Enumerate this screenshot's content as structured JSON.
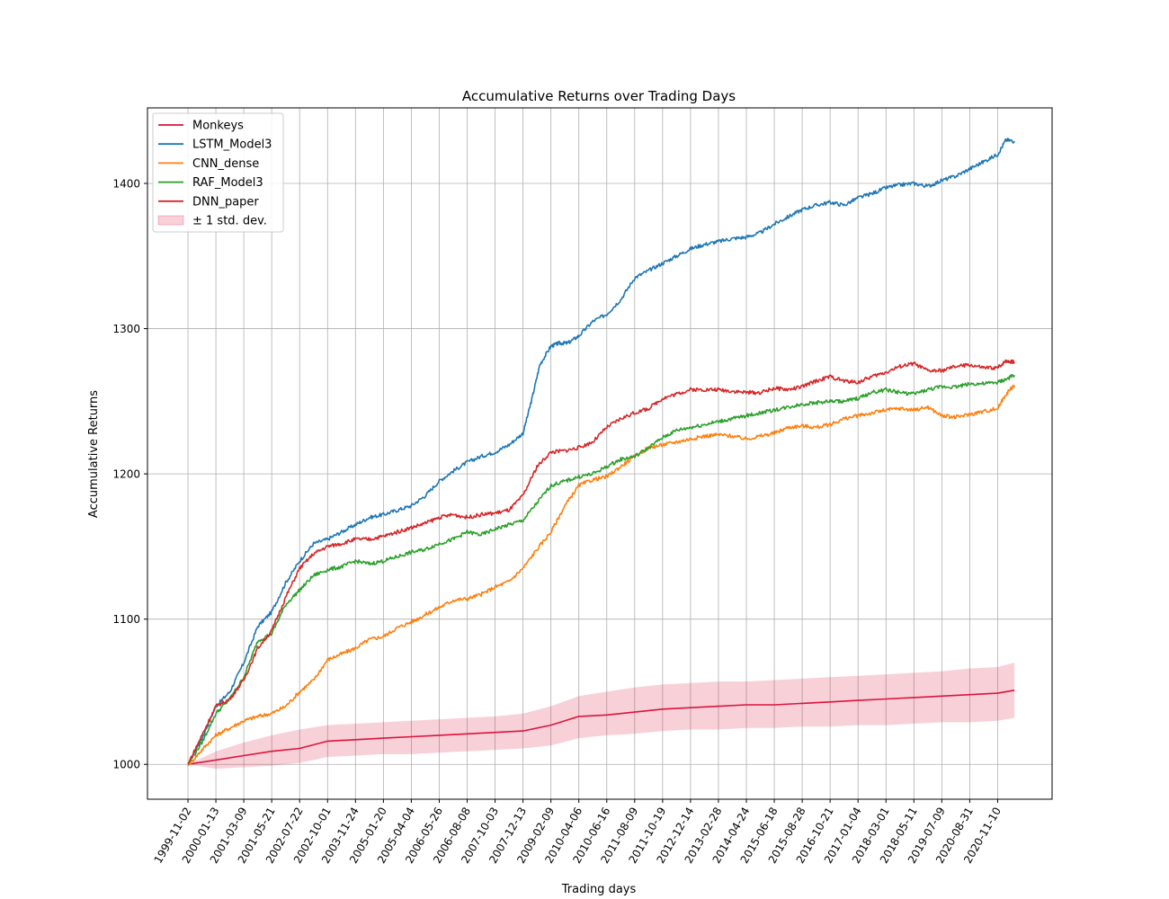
{
  "chart_data": {
    "type": "line",
    "title": "Accumulative Returns over Trading Days",
    "xlabel": "Trading days",
    "ylabel": "Accumulative Returns",
    "xticks": [
      "1999-11-02",
      "2000-01-13",
      "2001-03-09",
      "2001-05-21",
      "2002-07-22",
      "2002-10-01",
      "2003-11-24",
      "2005-01-20",
      "2005-04-04",
      "2006-05-26",
      "2006-08-08",
      "2007-10-03",
      "2007-12-13",
      "2009-02-09",
      "2010-04-06",
      "2010-06-16",
      "2011-08-09",
      "2011-10-19",
      "2012-12-14",
      "2013-02-28",
      "2014-04-24",
      "2015-06-18",
      "2015-08-28",
      "2016-10-21",
      "2017-01-04",
      "2018-03-01",
      "2018-05-11",
      "2019-07-09",
      "2020-08-31",
      "2020-11-10"
    ],
    "yticks": [
      1000,
      1100,
      1200,
      1300,
      1400
    ],
    "ylim": [
      976,
      1452
    ],
    "xlim": [
      -1.45,
      30.95
    ],
    "grid": true,
    "legend_position": "top-left",
    "band_legend": "± 1 std. dev.",
    "monkeys": {
      "name": "Monkeys",
      "color": "#dc143c",
      "x": [
        0,
        1,
        2,
        3,
        4,
        5,
        6,
        7,
        8,
        9,
        10,
        11,
        12,
        13,
        14,
        15,
        16,
        17,
        18,
        19,
        20,
        21,
        22,
        23,
        24,
        25,
        26,
        27,
        28,
        29,
        29.6
      ],
      "mean": [
        1000,
        1003,
        1006,
        1009,
        1011,
        1016,
        1017,
        1018,
        1019,
        1020,
        1021,
        1022,
        1023,
        1027,
        1033,
        1034,
        1036,
        1038,
        1039,
        1040,
        1041,
        1041,
        1042,
        1043,
        1044,
        1045,
        1046,
        1047,
        1048,
        1049,
        1051
      ],
      "upper": [
        1000,
        1009,
        1015,
        1020,
        1024,
        1027,
        1028,
        1029,
        1030,
        1031,
        1032,
        1033,
        1035,
        1040,
        1047,
        1050,
        1053,
        1055,
        1056,
        1057,
        1057,
        1058,
        1059,
        1060,
        1061,
        1062,
        1063,
        1064,
        1066,
        1067,
        1070
      ],
      "lower": [
        1000,
        997,
        998,
        999,
        1001,
        1005,
        1006,
        1007,
        1007,
        1008,
        1009,
        1010,
        1011,
        1013,
        1018,
        1020,
        1021,
        1023,
        1024,
        1024,
        1025,
        1025,
        1026,
        1026,
        1027,
        1027,
        1028,
        1029,
        1029,
        1030,
        1032
      ]
    },
    "series": [
      {
        "name": "LSTM_Model3",
        "color": "#1f77b4",
        "x": [
          0,
          0.5,
          1,
          1.5,
          2,
          2.5,
          3,
          3.5,
          4,
          4.5,
          5,
          5.5,
          6,
          6.5,
          7,
          7.5,
          8,
          8.5,
          9,
          9.5,
          10,
          10.5,
          11,
          11.5,
          12,
          12.3,
          12.6,
          13,
          13.3,
          13.6,
          14,
          14.5,
          15,
          15.5,
          16,
          16.5,
          17,
          17.5,
          18,
          18.5,
          19,
          19.5,
          20,
          20.5,
          21,
          21.5,
          22,
          22.5,
          23,
          23.5,
          24,
          24.5,
          25,
          25.5,
          26,
          26.5,
          27,
          27.5,
          28,
          28.5,
          29,
          29.3,
          29.6
        ],
        "y": [
          1000,
          1018,
          1040,
          1050,
          1070,
          1095,
          1105,
          1125,
          1140,
          1152,
          1155,
          1160,
          1165,
          1170,
          1172,
          1175,
          1178,
          1185,
          1195,
          1202,
          1208,
          1212,
          1215,
          1220,
          1228,
          1250,
          1275,
          1288,
          1290,
          1290,
          1295,
          1305,
          1310,
          1320,
          1335,
          1340,
          1345,
          1350,
          1355,
          1358,
          1360,
          1362,
          1363,
          1366,
          1372,
          1377,
          1382,
          1385,
          1387,
          1385,
          1390,
          1393,
          1397,
          1399,
          1400,
          1398,
          1402,
          1405,
          1410,
          1415,
          1420,
          1430,
          1429
        ]
      },
      {
        "name": "CNN_dense",
        "color": "#ff7f0e",
        "x": [
          0,
          0.5,
          1,
          1.5,
          2,
          2.5,
          3,
          3.5,
          4,
          4.5,
          5,
          5.5,
          6,
          6.5,
          7,
          7.5,
          8,
          8.5,
          9,
          9.5,
          10,
          10.5,
          11,
          11.5,
          12,
          12.5,
          13,
          13.5,
          14,
          14.5,
          15,
          15.5,
          16,
          16.5,
          17,
          17.5,
          18,
          18.5,
          19,
          19.5,
          20,
          20.5,
          21,
          21.5,
          22,
          22.5,
          23,
          23.5,
          24,
          24.5,
          25,
          25.5,
          26,
          26.5,
          27,
          27.5,
          28,
          28.5,
          29,
          29.3,
          29.6
        ],
        "y": [
          999,
          1010,
          1020,
          1025,
          1030,
          1033,
          1035,
          1040,
          1050,
          1058,
          1072,
          1076,
          1080,
          1086,
          1088,
          1094,
          1098,
          1103,
          1108,
          1113,
          1114,
          1117,
          1122,
          1126,
          1135,
          1148,
          1160,
          1178,
          1192,
          1196,
          1198,
          1205,
          1212,
          1218,
          1220,
          1222,
          1224,
          1226,
          1227,
          1226,
          1224,
          1226,
          1228,
          1232,
          1233,
          1232,
          1234,
          1238,
          1240,
          1242,
          1244,
          1245,
          1244,
          1246,
          1240,
          1239,
          1241,
          1243,
          1245,
          1255,
          1261
        ]
      },
      {
        "name": "RAF_Model3",
        "color": "#2ca02c",
        "x": [
          0,
          0.5,
          1,
          1.5,
          2,
          2.5,
          3,
          3.5,
          4,
          4.5,
          5,
          5.5,
          6,
          6.5,
          7,
          7.5,
          8,
          8.5,
          9,
          9.5,
          10,
          10.5,
          11,
          11.5,
          12,
          12.5,
          13,
          13.5,
          14,
          14.5,
          15,
          15.5,
          16,
          16.5,
          17,
          17.5,
          18,
          18.5,
          19,
          19.5,
          20,
          20.5,
          21,
          21.5,
          22,
          22.5,
          23,
          23.5,
          24,
          24.5,
          25,
          25.5,
          26,
          26.5,
          27,
          27.5,
          28,
          28.5,
          29,
          29.3,
          29.6
        ],
        "y": [
          1000,
          1015,
          1035,
          1045,
          1060,
          1085,
          1090,
          1110,
          1120,
          1130,
          1134,
          1136,
          1140,
          1138,
          1140,
          1143,
          1146,
          1148,
          1152,
          1155,
          1160,
          1158,
          1162,
          1165,
          1168,
          1180,
          1192,
          1195,
          1198,
          1200,
          1205,
          1210,
          1212,
          1218,
          1225,
          1230,
          1232,
          1234,
          1236,
          1238,
          1240,
          1242,
          1244,
          1246,
          1248,
          1249,
          1250,
          1250,
          1252,
          1256,
          1258,
          1256,
          1255,
          1258,
          1260,
          1260,
          1262,
          1262,
          1263,
          1265,
          1268
        ]
      },
      {
        "name": "DNN_paper",
        "color": "#d62728",
        "x": [
          0,
          0.5,
          1,
          1.5,
          2,
          2.5,
          3,
          3.5,
          4,
          4.5,
          5,
          5.5,
          6,
          6.5,
          7,
          7.5,
          8,
          8.5,
          9,
          9.5,
          10,
          10.5,
          11,
          11.5,
          12,
          12.5,
          13,
          13.5,
          14,
          14.5,
          15,
          15.5,
          16,
          16.5,
          17,
          17.5,
          18,
          18.5,
          19,
          19.5,
          20,
          20.5,
          21,
          21.5,
          22,
          22.5,
          23,
          23.5,
          24,
          24.5,
          25,
          25.5,
          26,
          26.5,
          27,
          27.5,
          28,
          28.5,
          29,
          29.3,
          29.6
        ],
        "y": [
          1000,
          1020,
          1040,
          1045,
          1058,
          1080,
          1092,
          1115,
          1135,
          1145,
          1150,
          1152,
          1155,
          1155,
          1157,
          1160,
          1163,
          1166,
          1170,
          1172,
          1170,
          1172,
          1173,
          1175,
          1185,
          1205,
          1215,
          1216,
          1218,
          1222,
          1232,
          1238,
          1242,
          1245,
          1252,
          1255,
          1258,
          1258,
          1258,
          1257,
          1256,
          1256,
          1259,
          1258,
          1260,
          1264,
          1267,
          1264,
          1263,
          1267,
          1270,
          1274,
          1276,
          1271,
          1271,
          1274,
          1275,
          1273,
          1273,
          1278,
          1277
        ]
      }
    ]
  }
}
